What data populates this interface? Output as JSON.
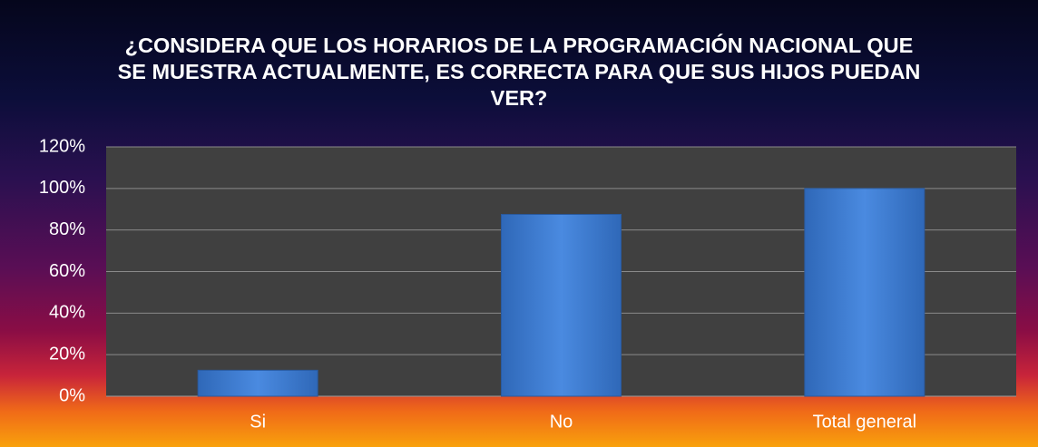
{
  "chart_data": {
    "type": "bar",
    "title": "¿CONSIDERA QUE LOS HORARIOS DE LA PROGRAMACIÓN NACIONAL QUE SE MUESTRA ACTUALMENTE, ES CORRECTA PARA QUE SUS HIJOS PUEDAN VER?",
    "categories": [
      "Si",
      "No",
      "Total general"
    ],
    "values": [
      12.5,
      87.5,
      100
    ],
    "color": "#3d7fd6",
    "ylim": [
      0,
      120
    ],
    "yticks": [
      {
        "value": 0,
        "label": "0%"
      },
      {
        "value": 20,
        "label": "20%"
      },
      {
        "value": 40,
        "label": "40%"
      },
      {
        "value": 60,
        "label": "60%"
      },
      {
        "value": 80,
        "label": "80%"
      },
      {
        "value": 100,
        "label": "100%"
      },
      {
        "value": 120,
        "label": "120%"
      }
    ],
    "grid": true
  }
}
